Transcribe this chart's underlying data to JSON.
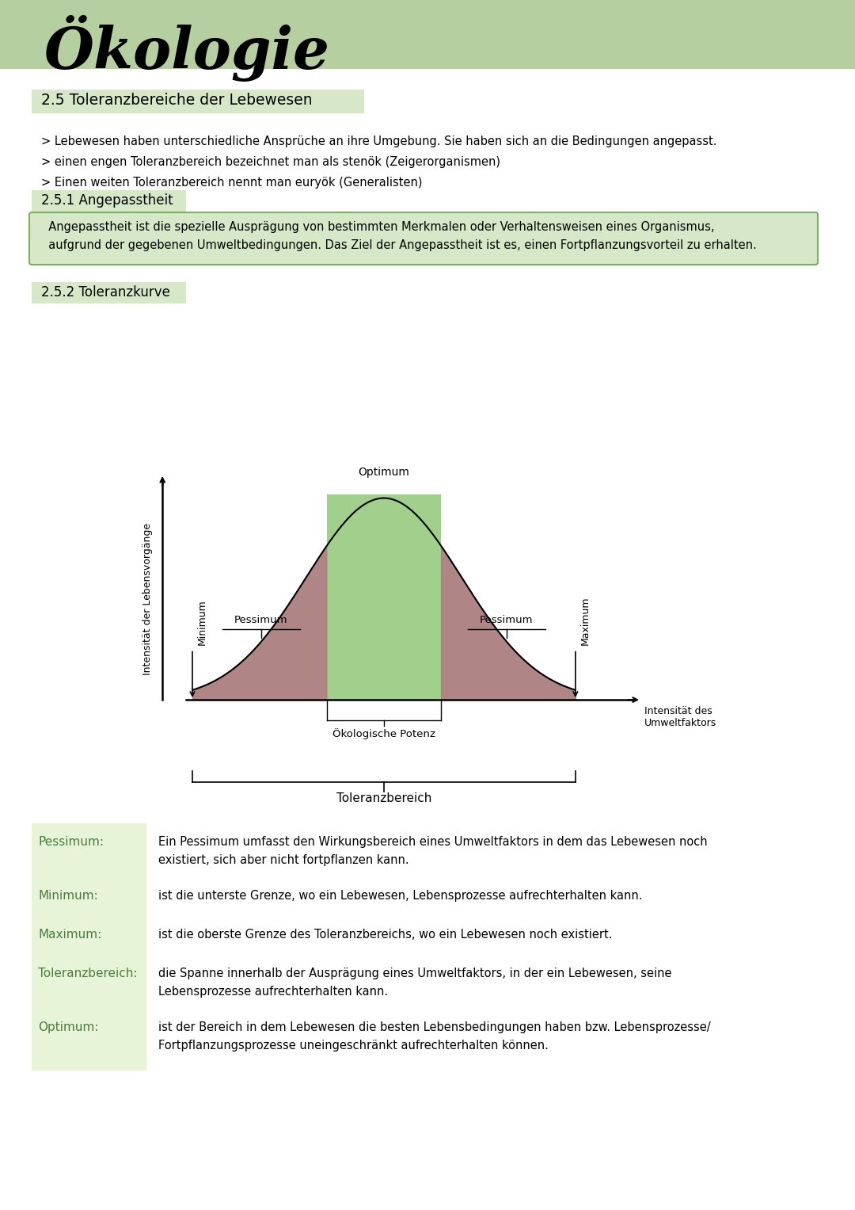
{
  "title": "Ökologie",
  "title_bg_color": "#b5cfa0",
  "section_title": "2.5 Toleranzbereiche der Lebewesen",
  "section_title_bg": "#d6e8c8",
  "bullet_points": [
    "> Lebewesen haben unterschiedliche Ansprüche an ihre Umgebung. Sie haben sich an die Bedingungen angepasst.",
    "> einen engen Toleranzbereich bezeichnet man als stenök (Zeigerorganismen)",
    "> Einen weiten Toleranzbereich nennt man euryök (Generalisten)"
  ],
  "subsection1_title": "2.5.1 Angepasstheit",
  "angepasstheit_text": "  Angepasstheit ist die spezielle Ausprägung von bestimmten Merkmalen oder Verhaltensweisen eines Organismus,\n  aufgrund der gegebenen Umweltbedingungen. Das Ziel der Angepasstheit ist es, einen Fortpflanzungsvorteil zu erhalten.",
  "angepasstheit_box_color": "#d6e8c8",
  "angepasstheit_box_border": "#7ab060",
  "subsection2_title": "2.5.2 Toleranzkurve",
  "curve_optimum_label": "Optimum",
  "curve_pessimum_label_left": "Pessimum",
  "curve_pessimum_label_right": "Pessimum",
  "curve_minimum_label": "Minimum",
  "curve_maximum_label": "Maximum",
  "curve_ylabel": "Intensität der Lebensvorgänge",
  "curve_xlabel": "Intensität des\nUmweltfaktors",
  "okologische_potenz_label": "Ökologische Potenz",
  "toleranzbereich_label": "Toleranzbereich",
  "fill_green_color": "#90c878",
  "fill_red_color": "#a87878",
  "section_bg": "#d6e8c8",
  "def_bg_color": "#e8f4d8",
  "definitions": [
    {
      "term": "Pessimum:",
      "definition": "Ein Pessimum umfasst den Wirkungsbereich eines Umweltfaktors in dem das Lebewesen noch\nexistiert, sich aber nicht fortpflanzen kann."
    },
    {
      "term": "Minimum:",
      "definition": "ist die unterste Grenze, wo ein Lebewesen, Lebensprozesse aufrechterhalten kann."
    },
    {
      "term": "Maximum:",
      "definition": "ist die oberste Grenze des Toleranzbereichs, wo ein Lebewesen noch existiert."
    },
    {
      "term": "Toleranzbereich:",
      "definition": "die Spanne innerhalb der Ausprägung eines Umweltfaktors, in der ein Lebewesen, seine\nLebensprozesse aufrechterhalten kann."
    },
    {
      "term": "Optimum:",
      "definition": "ist der Bereich in dem Lebewesen die besten Lebensbedingungen haben bzw. Lebensprozesse/\nFortpflanzungsprozesse uneingeschränkt aufrechterhalten können."
    }
  ],
  "bg_color": "#ffffff",
  "def_term_color": "#4a7c3f"
}
